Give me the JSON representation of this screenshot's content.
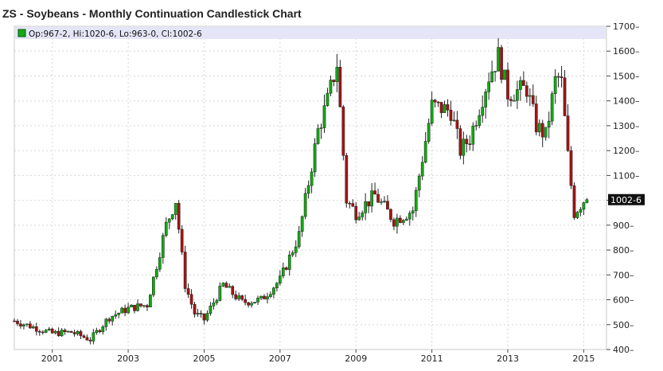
{
  "chart_data": {
    "type": "candlestick",
    "title": "ZS - Soybeans - Monthly Continuation Candlestick Chart",
    "legend": {
      "text": "Op:967-2, Hi:1020-6, Lo:963-0, Cl:1002-6",
      "swatch_color": "#11aa11"
    },
    "last_value_label": "1002-6",
    "last_value": 1002.75,
    "ylim": [
      400,
      1700
    ],
    "y_ticks": [
      400,
      500,
      600,
      700,
      800,
      900,
      1000,
      1100,
      1200,
      1300,
      1400,
      1500,
      1600,
      1700
    ],
    "y_tick_labels": [
      "400",
      "500",
      "600",
      "700",
      "800",
      "900",
      "1000",
      "1100",
      "1200",
      "1300",
      "1400",
      "1500",
      "1600",
      "1700"
    ],
    "x_range": [
      2000.0,
      2015.6
    ],
    "x_ticks": [
      2001,
      2003,
      2005,
      2007,
      2009,
      2011,
      2013,
      2015
    ],
    "x_tick_labels": [
      "2001",
      "2003",
      "2005",
      "2007",
      "2009",
      "2011",
      "2013",
      "2015"
    ],
    "grid": true,
    "up_color": "#11aa11",
    "down_color": "#aa1111",
    "monthly_closes": [
      {
        "x": 2000.0,
        "close": 515
      },
      {
        "x": 2000.5,
        "close": 490
      },
      {
        "x": 2001.0,
        "close": 465
      },
      {
        "x": 2001.5,
        "close": 470
      },
      {
        "x": 2002.0,
        "close": 440
      },
      {
        "x": 2002.5,
        "close": 530
      },
      {
        "x": 2003.0,
        "close": 565
      },
      {
        "x": 2003.5,
        "close": 580
      },
      {
        "x": 2004.0,
        "close": 900
      },
      {
        "x": 2004.25,
        "close": 1000
      },
      {
        "x": 2004.5,
        "close": 660
      },
      {
        "x": 2004.75,
        "close": 545
      },
      {
        "x": 2005.0,
        "close": 520
      },
      {
        "x": 2005.5,
        "close": 660
      },
      {
        "x": 2006.0,
        "close": 590
      },
      {
        "x": 2006.5,
        "close": 600
      },
      {
        "x": 2007.0,
        "close": 680
      },
      {
        "x": 2007.5,
        "close": 860
      },
      {
        "x": 2008.0,
        "close": 1280
      },
      {
        "x": 2008.25,
        "close": 1400
      },
      {
        "x": 2008.5,
        "close": 1550
      },
      {
        "x": 2008.75,
        "close": 1000
      },
      {
        "x": 2009.0,
        "close": 950
      },
      {
        "x": 2009.5,
        "close": 1020
      },
      {
        "x": 2010.0,
        "close": 920
      },
      {
        "x": 2010.5,
        "close": 960
      },
      {
        "x": 2011.0,
        "close": 1380
      },
      {
        "x": 2011.5,
        "close": 1360
      },
      {
        "x": 2011.75,
        "close": 1200
      },
      {
        "x": 2012.0,
        "close": 1250
      },
      {
        "x": 2012.5,
        "close": 1500
      },
      {
        "x": 2012.75,
        "close": 1580
      },
      {
        "x": 2013.0,
        "close": 1430
      },
      {
        "x": 2013.5,
        "close": 1450
      },
      {
        "x": 2013.75,
        "close": 1300
      },
      {
        "x": 2014.0,
        "close": 1260
      },
      {
        "x": 2014.25,
        "close": 1480
      },
      {
        "x": 2014.4,
        "close": 1500
      },
      {
        "x": 2014.6,
        "close": 1150
      },
      {
        "x": 2014.75,
        "close": 950
      },
      {
        "x": 2015.0,
        "close": 1000
      },
      {
        "x": 2015.1,
        "close": 1002.75
      }
    ]
  }
}
